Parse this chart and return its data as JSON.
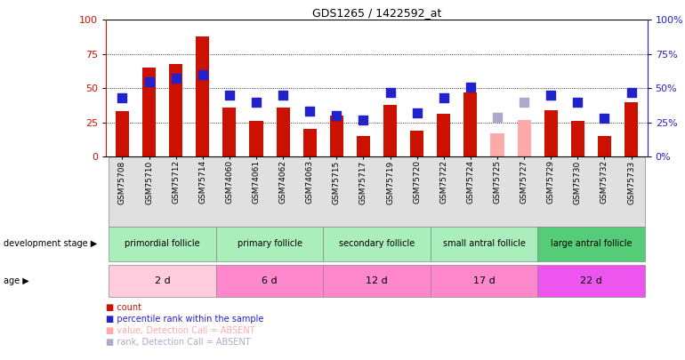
{
  "title": "GDS1265 / 1422592_at",
  "samples": [
    "GSM75708",
    "GSM75710",
    "GSM75712",
    "GSM75714",
    "GSM74060",
    "GSM74061",
    "GSM74062",
    "GSM74063",
    "GSM75715",
    "GSM75717",
    "GSM75719",
    "GSM75720",
    "GSM75722",
    "GSM75724",
    "GSM75725",
    "GSM75727",
    "GSM75729",
    "GSM75730",
    "GSM75732",
    "GSM75733"
  ],
  "red_bars": [
    33,
    65,
    68,
    88,
    36,
    26,
    36,
    20,
    30,
    15,
    38,
    19,
    31,
    47,
    0,
    0,
    34,
    26,
    15,
    40
  ],
  "blue_squares": [
    43,
    55,
    57,
    60,
    45,
    40,
    45,
    33,
    30,
    27,
    47,
    32,
    43,
    51,
    0,
    0,
    45,
    40,
    28,
    47
  ],
  "pink_bars": [
    0,
    0,
    0,
    0,
    0,
    0,
    0,
    0,
    0,
    0,
    0,
    0,
    0,
    0,
    17,
    27,
    0,
    0,
    0,
    0
  ],
  "lavender_squares": [
    0,
    0,
    0,
    0,
    0,
    0,
    0,
    0,
    0,
    0,
    0,
    0,
    0,
    0,
    29,
    40,
    0,
    0,
    0,
    0
  ],
  "absent_mask": [
    false,
    false,
    false,
    false,
    false,
    false,
    false,
    false,
    false,
    false,
    false,
    false,
    false,
    false,
    true,
    true,
    false,
    false,
    false,
    false
  ],
  "groups": [
    {
      "label": "primordial follicle",
      "start": 0,
      "end": 4,
      "color": "#AAEEBB"
    },
    {
      "label": "primary follicle",
      "start": 4,
      "end": 8,
      "color": "#AAEEBB"
    },
    {
      "label": "secondary follicle",
      "start": 8,
      "end": 12,
      "color": "#AAEEBB"
    },
    {
      "label": "small antral follicle",
      "start": 12,
      "end": 16,
      "color": "#AAEEBB"
    },
    {
      "label": "large antral follicle",
      "start": 16,
      "end": 20,
      "color": "#55CC77"
    }
  ],
  "ages": [
    {
      "label": "2 d",
      "start": 0,
      "end": 4,
      "color": "#FFCCDD"
    },
    {
      "label": "6 d",
      "start": 4,
      "end": 8,
      "color": "#FF88CC"
    },
    {
      "label": "12 d",
      "start": 8,
      "end": 12,
      "color": "#FF88CC"
    },
    {
      "label": "17 d",
      "start": 12,
      "end": 16,
      "color": "#FF88CC"
    },
    {
      "label": "22 d",
      "start": 16,
      "end": 20,
      "color": "#EE55EE"
    }
  ],
  "ylim": [
    0,
    100
  ],
  "yticks": [
    0,
    25,
    50,
    75,
    100
  ],
  "bar_color": "#CC1100",
  "pink_bar_color": "#FFAAAA",
  "blue_sq_color": "#2222CC",
  "lavender_sq_color": "#AAAACC",
  "grid_values": [
    25,
    50,
    75
  ],
  "bar_width": 0.5,
  "sq_size": 45
}
